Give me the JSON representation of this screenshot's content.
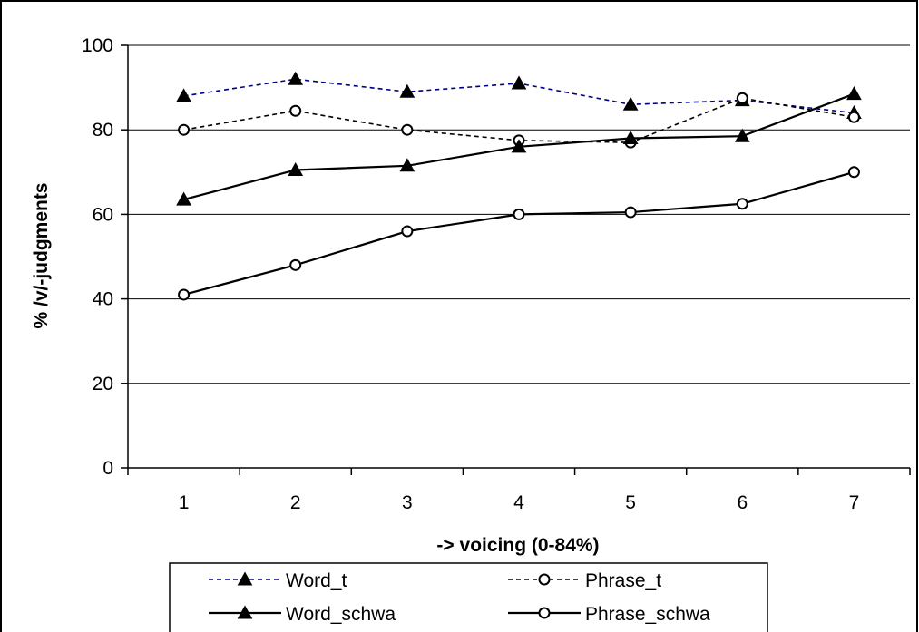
{
  "chart_data": {
    "type": "line",
    "xlabel": "-> voicing (0-84%)",
    "ylabel": "% /v/-judgments",
    "categories": [
      "1",
      "2",
      "3",
      "4",
      "5",
      "6",
      "7"
    ],
    "ylim": [
      0,
      100
    ],
    "yticks": [
      "0",
      "20",
      "40",
      "60",
      "80",
      "100"
    ],
    "grid": "horizontal",
    "legend_position": "bottom",
    "series": [
      {
        "name": "Word_t",
        "values": [
          88,
          92,
          89,
          91,
          86,
          87,
          84
        ],
        "color": "#000080",
        "dash": "dashed",
        "marker": "triangle"
      },
      {
        "name": "Phrase_t",
        "values": [
          80,
          84.5,
          80,
          77.5,
          77,
          87.5,
          83
        ],
        "color": "#000000",
        "dash": "dashed",
        "marker": "circle"
      },
      {
        "name": "Word_schwa",
        "values": [
          63.5,
          70.5,
          71.5,
          76,
          78,
          78.5,
          88.5
        ],
        "color": "#000000",
        "dash": "solid",
        "marker": "triangle"
      },
      {
        "name": "Phrase_schwa",
        "values": [
          41,
          48,
          56,
          60,
          60.5,
          62.5,
          70
        ],
        "color": "#000000",
        "dash": "solid",
        "marker": "circle"
      }
    ]
  }
}
